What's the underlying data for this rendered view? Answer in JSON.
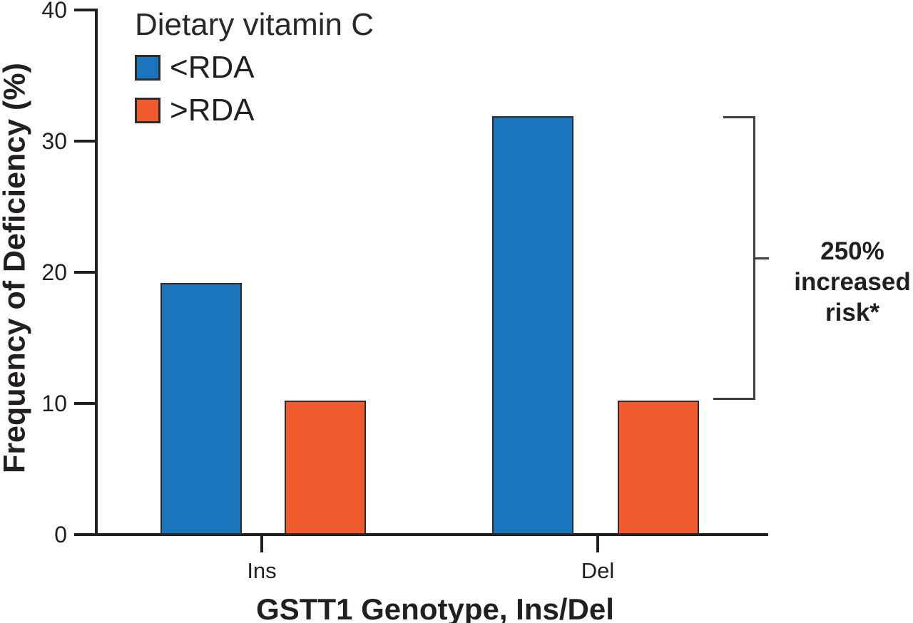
{
  "chart_data": {
    "type": "bar",
    "categories": [
      "Ins",
      "Del"
    ],
    "series": [
      {
        "name": "<RDA",
        "color": "#1B75BC",
        "values": [
          19.2,
          31.9
        ]
      },
      {
        "name": ">RDA",
        "color": "#F15B2E",
        "values": [
          10.2,
          10.2
        ]
      }
    ],
    "xlabel": "GSTT1 Genotype, Ins/Del",
    "ylabel": "Frequency of Deficiency (%)",
    "ylim": [
      0,
      40
    ],
    "yticks": [
      0,
      10,
      20,
      30,
      40
    ],
    "ytick_labels": [
      "0",
      "10",
      "20",
      "30",
      "40"
    ],
    "grid": false,
    "legend_title": "Dietary vitamin C",
    "legend_position": "top-left",
    "annotation": {
      "lines": [
        "250%",
        "increased",
        "risk*"
      ],
      "text": "250% increased risk*",
      "applies_to": "Del genotype, <RDA vs >RDA bars"
    }
  }
}
